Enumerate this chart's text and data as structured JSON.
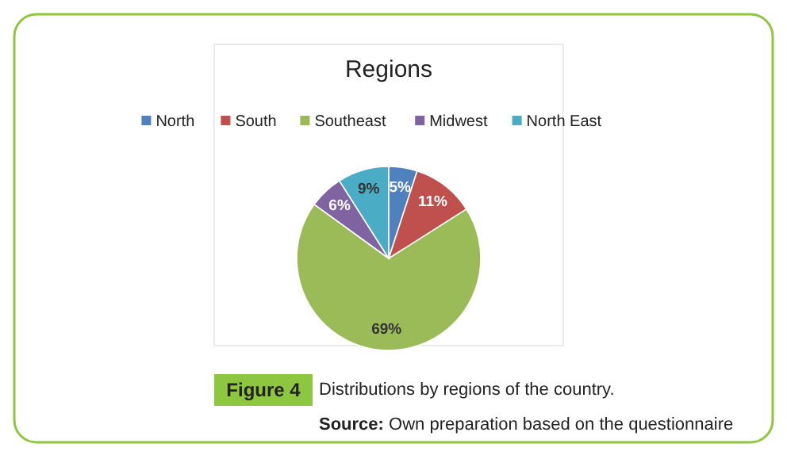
{
  "chart_data": {
    "type": "pie",
    "title": "Regions",
    "categories": [
      "North",
      "South",
      "Southeast",
      "Midwest",
      "North East"
    ],
    "values": [
      5,
      11,
      69,
      6,
      9
    ],
    "colors": [
      "#4f81bd",
      "#c0504d",
      "#9bbb59",
      "#8064a2",
      "#4bacc6"
    ],
    "value_labels": [
      "5%",
      "11%",
      "69%",
      "6%",
      "9%"
    ],
    "legend": "top",
    "annotations": [
      "Figure 4",
      "Distributions by regions of the country.",
      "Source: Own preparation based on the questionnaire"
    ]
  }
}
